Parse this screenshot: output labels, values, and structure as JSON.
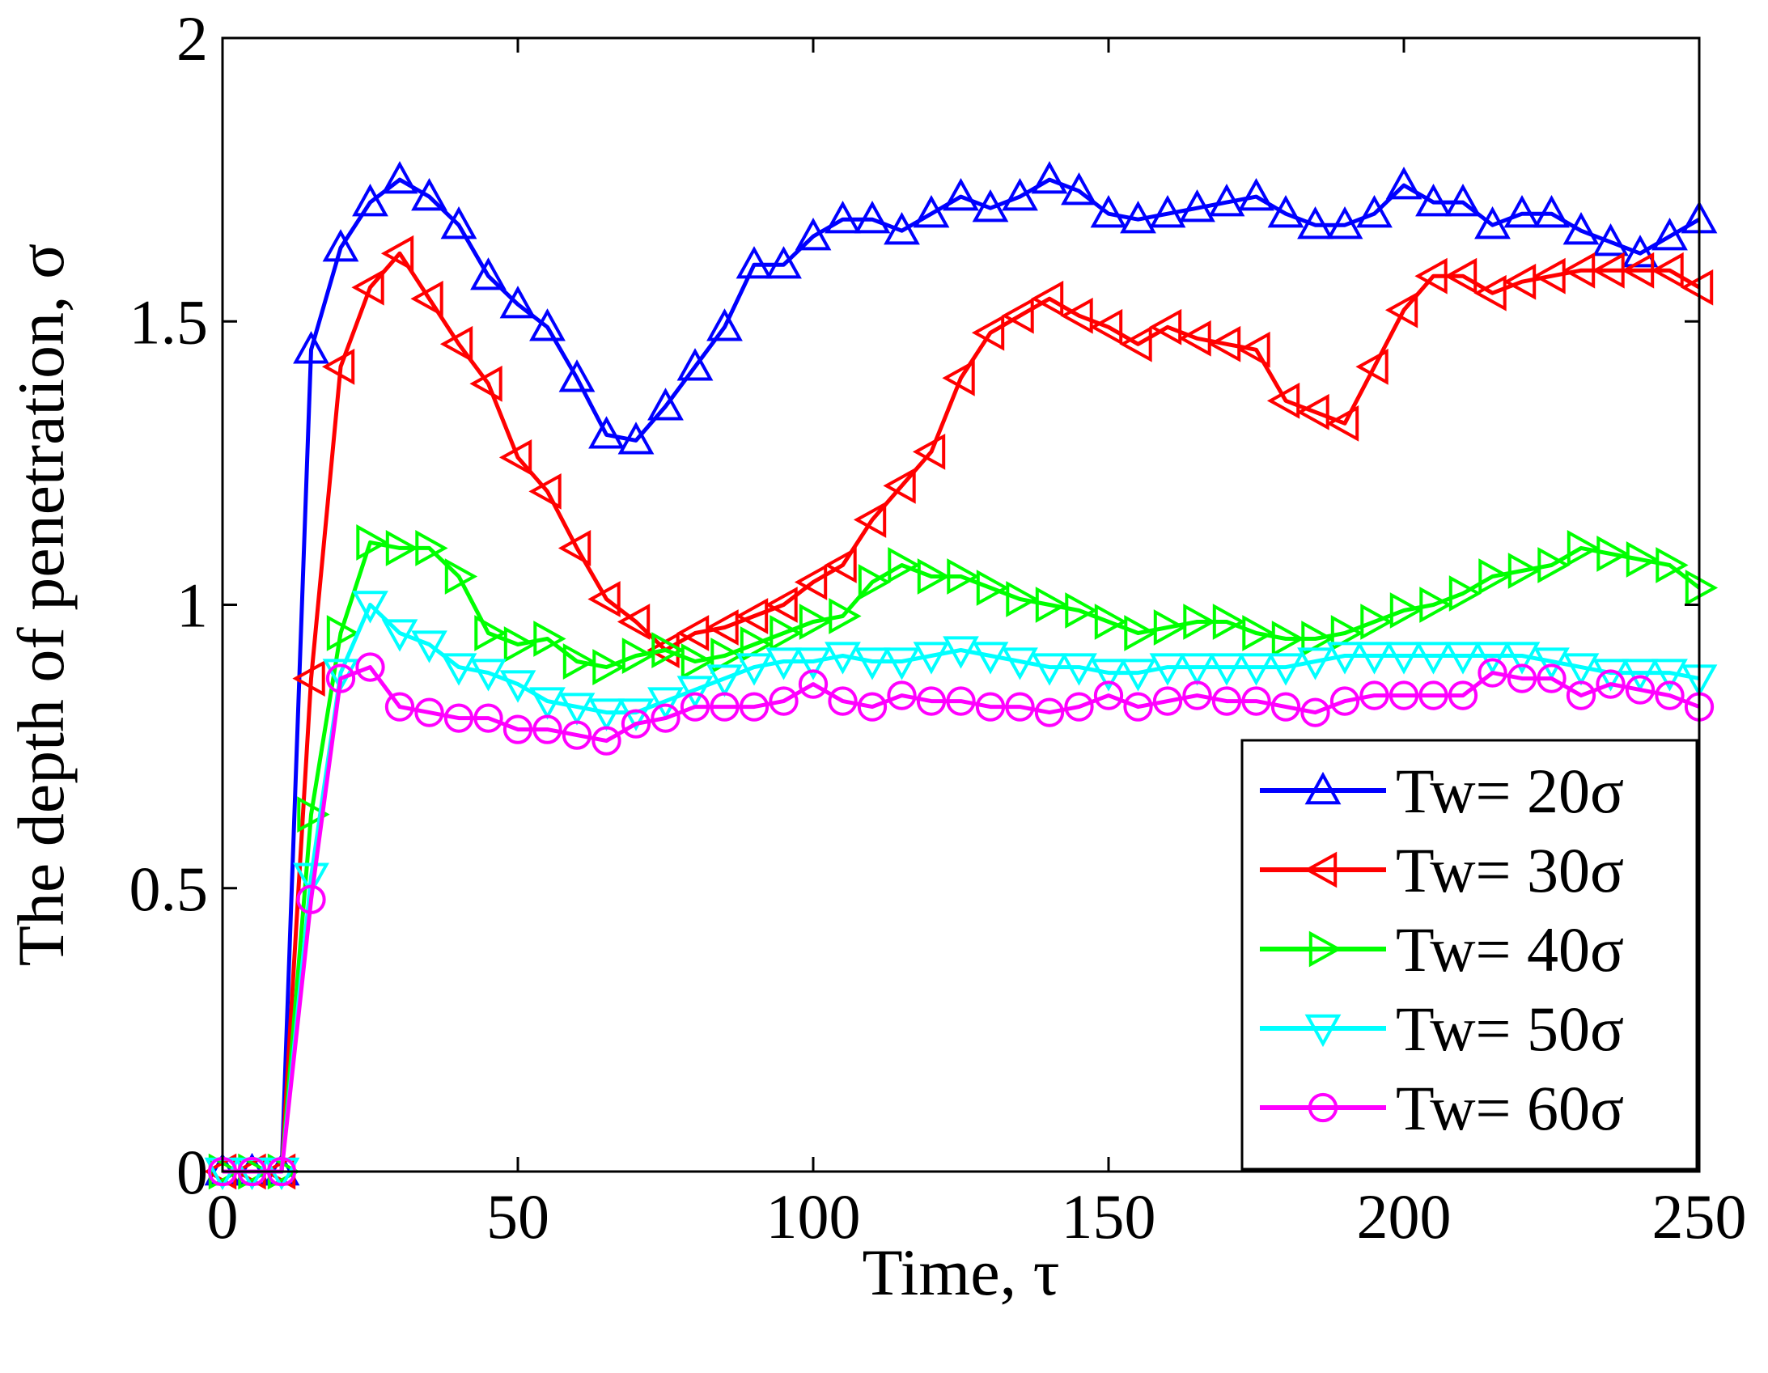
{
  "chart_data": {
    "type": "line",
    "xlabel": "Time, τ",
    "ylabel": "The depth of penetration, σ",
    "xlim": [
      0,
      250
    ],
    "ylim": [
      0,
      2
    ],
    "xticks": [
      0,
      50,
      100,
      150,
      200,
      250
    ],
    "yticks": [
      0,
      0.5,
      1,
      1.5,
      2
    ],
    "xtick_labels": [
      "0",
      "50",
      "100",
      "150",
      "200",
      "250"
    ],
    "ytick_labels": [
      "0",
      "0.5",
      "1",
      "1.5",
      "2"
    ],
    "grid": false,
    "legend_position": "bottom-right",
    "series": [
      {
        "name": "Tw= 20σ",
        "color": "#0000ff",
        "marker": "triangle-up",
        "x": [
          0,
          5,
          10,
          15,
          20,
          25,
          30,
          35,
          40,
          45,
          50,
          55,
          60,
          65,
          70,
          75,
          80,
          85,
          90,
          95,
          100,
          105,
          110,
          115,
          120,
          125,
          130,
          135,
          140,
          145,
          150,
          155,
          160,
          165,
          170,
          175,
          180,
          185,
          190,
          195,
          200,
          205,
          210,
          215,
          220,
          225,
          230,
          235,
          240,
          245,
          250
        ],
        "y": [
          0,
          0,
          0,
          1.45,
          1.63,
          1.71,
          1.75,
          1.72,
          1.67,
          1.58,
          1.53,
          1.49,
          1.4,
          1.3,
          1.29,
          1.35,
          1.42,
          1.49,
          1.6,
          1.6,
          1.65,
          1.68,
          1.68,
          1.66,
          1.69,
          1.72,
          1.7,
          1.72,
          1.75,
          1.73,
          1.69,
          1.68,
          1.69,
          1.7,
          1.71,
          1.72,
          1.69,
          1.67,
          1.67,
          1.69,
          1.74,
          1.71,
          1.71,
          1.67,
          1.69,
          1.69,
          1.66,
          1.64,
          1.62,
          1.65,
          1.68
        ]
      },
      {
        "name": "Tw= 30σ",
        "color": "#ff0000",
        "marker": "triangle-left",
        "x": [
          0,
          5,
          10,
          15,
          20,
          25,
          30,
          35,
          40,
          45,
          50,
          55,
          60,
          65,
          70,
          75,
          80,
          85,
          90,
          95,
          100,
          105,
          110,
          115,
          120,
          125,
          130,
          135,
          140,
          145,
          150,
          155,
          160,
          165,
          170,
          175,
          180,
          185,
          190,
          195,
          200,
          205,
          210,
          215,
          220,
          225,
          230,
          235,
          240,
          245,
          250
        ],
        "y": [
          0,
          0,
          0,
          0.87,
          1.42,
          1.56,
          1.62,
          1.54,
          1.46,
          1.39,
          1.26,
          1.2,
          1.1,
          1.01,
          0.97,
          0.92,
          0.95,
          0.96,
          0.98,
          1.0,
          1.04,
          1.07,
          1.15,
          1.21,
          1.27,
          1.4,
          1.48,
          1.51,
          1.54,
          1.51,
          1.49,
          1.46,
          1.49,
          1.47,
          1.46,
          1.45,
          1.36,
          1.34,
          1.32,
          1.42,
          1.52,
          1.58,
          1.58,
          1.55,
          1.57,
          1.58,
          1.59,
          1.59,
          1.59,
          1.59,
          1.56
        ]
      },
      {
        "name": "Tw= 40σ",
        "color": "#00ff00",
        "marker": "triangle-right",
        "x": [
          0,
          5,
          10,
          15,
          20,
          25,
          30,
          35,
          40,
          45,
          50,
          55,
          60,
          65,
          70,
          75,
          80,
          85,
          90,
          95,
          100,
          105,
          110,
          115,
          120,
          125,
          130,
          135,
          140,
          145,
          150,
          155,
          160,
          165,
          170,
          175,
          180,
          185,
          190,
          195,
          200,
          205,
          210,
          215,
          220,
          225,
          230,
          235,
          240,
          245,
          250
        ],
        "y": [
          0,
          0,
          0,
          0.63,
          0.95,
          1.11,
          1.1,
          1.1,
          1.05,
          0.95,
          0.93,
          0.94,
          0.9,
          0.89,
          0.91,
          0.92,
          0.9,
          0.91,
          0.93,
          0.95,
          0.97,
          0.98,
          1.04,
          1.07,
          1.05,
          1.05,
          1.03,
          1.01,
          1.0,
          0.99,
          0.97,
          0.95,
          0.96,
          0.97,
          0.97,
          0.95,
          0.94,
          0.94,
          0.95,
          0.97,
          0.99,
          1.0,
          1.02,
          1.05,
          1.06,
          1.07,
          1.1,
          1.09,
          1.08,
          1.07,
          1.03
        ]
      },
      {
        "name": "Tw= 50σ",
        "color": "#00ffff",
        "marker": "triangle-down",
        "x": [
          0,
          5,
          10,
          15,
          20,
          25,
          30,
          35,
          40,
          45,
          50,
          55,
          60,
          65,
          70,
          75,
          80,
          85,
          90,
          95,
          100,
          105,
          110,
          115,
          120,
          125,
          130,
          135,
          140,
          145,
          150,
          155,
          160,
          165,
          170,
          175,
          180,
          185,
          190,
          195,
          200,
          205,
          210,
          215,
          220,
          225,
          230,
          235,
          240,
          245,
          250
        ],
        "y": [
          0,
          0,
          0,
          0.52,
          0.88,
          1.0,
          0.95,
          0.93,
          0.89,
          0.88,
          0.86,
          0.83,
          0.82,
          0.81,
          0.81,
          0.83,
          0.85,
          0.87,
          0.89,
          0.9,
          0.9,
          0.91,
          0.9,
          0.9,
          0.91,
          0.92,
          0.91,
          0.9,
          0.89,
          0.89,
          0.88,
          0.88,
          0.89,
          0.89,
          0.89,
          0.89,
          0.89,
          0.9,
          0.91,
          0.91,
          0.91,
          0.91,
          0.91,
          0.91,
          0.91,
          0.9,
          0.89,
          0.88,
          0.88,
          0.88,
          0.87
        ]
      },
      {
        "name": "Tw= 60σ",
        "color": "#ff00ff",
        "marker": "circle",
        "x": [
          0,
          5,
          10,
          15,
          20,
          25,
          30,
          35,
          40,
          45,
          50,
          55,
          60,
          65,
          70,
          75,
          80,
          85,
          90,
          95,
          100,
          105,
          110,
          115,
          120,
          125,
          130,
          135,
          140,
          145,
          150,
          155,
          160,
          165,
          170,
          175,
          180,
          185,
          190,
          195,
          200,
          205,
          210,
          215,
          220,
          225,
          230,
          235,
          240,
          245,
          250
        ],
        "y": [
          0,
          0,
          0,
          0.48,
          0.87,
          0.89,
          0.82,
          0.81,
          0.8,
          0.8,
          0.78,
          0.78,
          0.77,
          0.76,
          0.79,
          0.8,
          0.82,
          0.82,
          0.82,
          0.83,
          0.86,
          0.83,
          0.82,
          0.84,
          0.83,
          0.83,
          0.82,
          0.82,
          0.81,
          0.82,
          0.84,
          0.82,
          0.83,
          0.84,
          0.83,
          0.83,
          0.82,
          0.81,
          0.83,
          0.84,
          0.84,
          0.84,
          0.84,
          0.88,
          0.87,
          0.87,
          0.84,
          0.86,
          0.85,
          0.84,
          0.82
        ]
      }
    ]
  }
}
